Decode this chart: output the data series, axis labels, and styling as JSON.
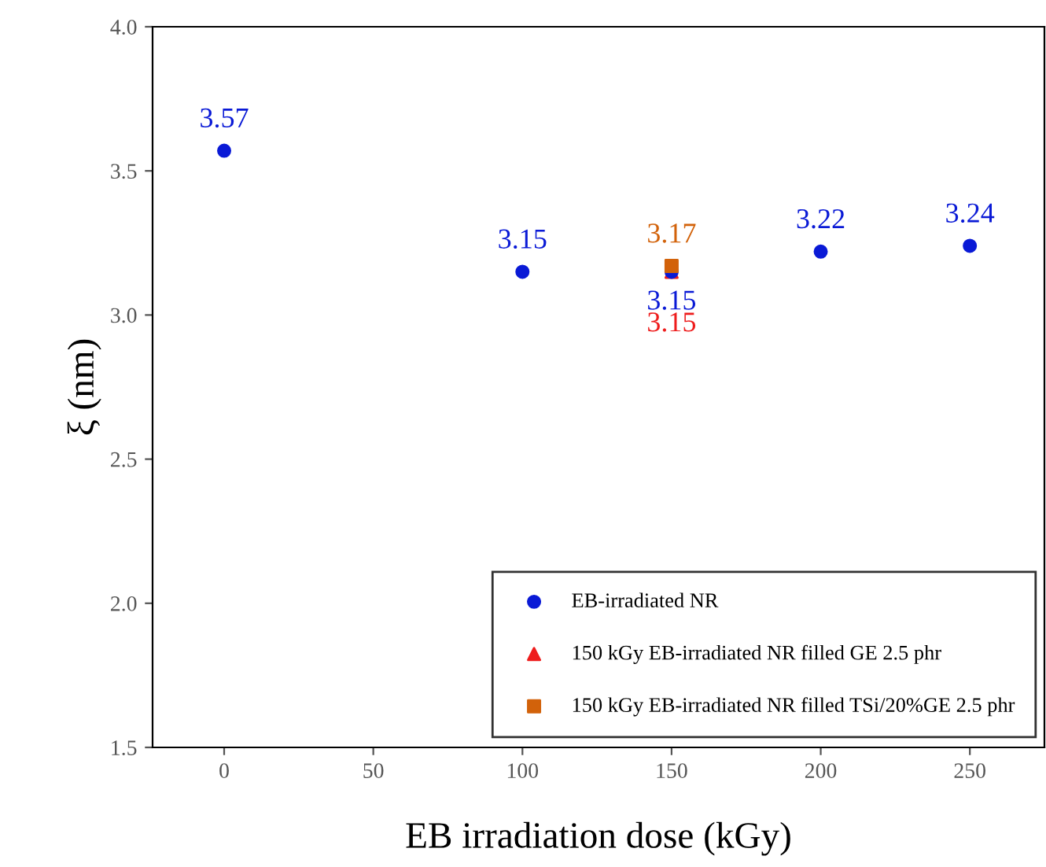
{
  "chart_data": {
    "type": "scatter",
    "xlabel": "EB irradiation dose (kGy)",
    "ylabel": "ξ (nm)",
    "xlim": [
      -24,
      275
    ],
    "xticks": [
      0,
      50,
      100,
      150,
      200,
      250
    ],
    "ylim": [
      1.5,
      4.0
    ],
    "yticks": [
      1.5,
      {
        "value": 2,
        "label": "2.0"
      },
      2.5,
      {
        "value": 3,
        "label": "3.0"
      },
      3.5,
      {
        "value": 4,
        "label": "4.0"
      }
    ],
    "grid": false,
    "legend": "bottom right",
    "series": [
      {
        "name": "EB-irradiated NR",
        "color": "#0a1ad6",
        "marker": "circle",
        "x": [
          0,
          100,
          150,
          200,
          250
        ],
        "values": [
          3.57,
          3.15,
          3.15,
          3.22,
          3.24
        ],
        "value_labels": [
          "3.57",
          "3.15",
          "3.15",
          "3.22",
          "3.24"
        ]
      },
      {
        "name": "150 kGy EB-irradiated NR filled GE 2.5 phr",
        "color": "#ee1c1c",
        "marker": "triangle",
        "x": [
          150
        ],
        "values": [
          3.15
        ],
        "value_labels": [
          "3.15"
        ]
      },
      {
        "name": "150 kGy EB-irradiated NR filled TSi/20%GE 2.5 phr",
        "color": "#d2620a",
        "marker": "square",
        "x": [
          150
        ],
        "values": [
          3.17
        ],
        "value_labels": [
          "3.17"
        ]
      }
    ]
  }
}
